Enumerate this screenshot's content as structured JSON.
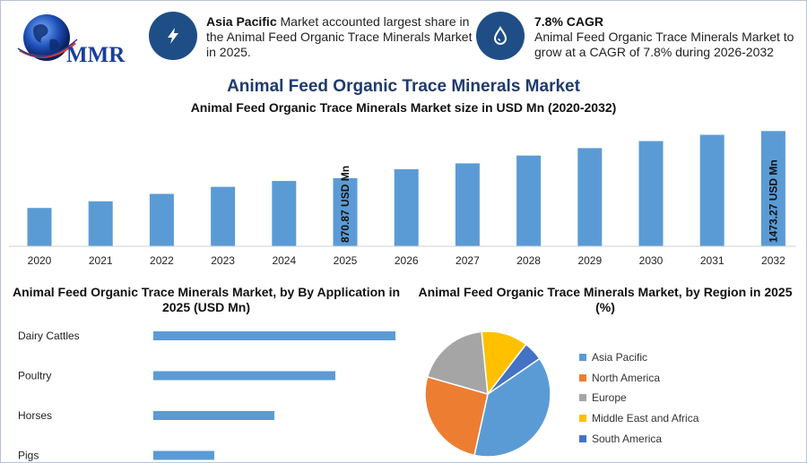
{
  "brand": {
    "logo_text": "MMR"
  },
  "info": [
    {
      "icon": "lightning-icon",
      "bold": "Asia Pacific",
      "text": " Market accounted largest share in the Animal Feed Organic Trace Minerals Market in 2025."
    },
    {
      "icon": "drop-icon",
      "bold": "7.8% CAGR",
      "text": "Animal Feed Organic Trace Minerals Market to grow at a CAGR of 7.8% during 2026-2032"
    }
  ],
  "main_title": "Animal Feed Organic Trace Minerals Market",
  "colors": {
    "bar": "#5b9bd5",
    "title": "#1f3a6e",
    "icon_circle": "#1f4e86"
  },
  "chart_data": [
    {
      "type": "bar",
      "title": "Animal Feed Organic Trace Minerals Market size in USD Mn (2020-2032)",
      "categories": [
        "2020",
        "2021",
        "2022",
        "2023",
        "2024",
        "2025",
        "2026",
        "2027",
        "2028",
        "2029",
        "2030",
        "2031",
        "2032"
      ],
      "values": [
        490,
        575,
        670,
        760,
        835,
        870.87,
        985,
        1060,
        1160,
        1255,
        1345,
        1425,
        1473.27
      ],
      "data_labels": {
        "2025": "870.87 USD Mn",
        "2032": "1473.27 USD Mn"
      },
      "ylim": [
        0,
        1500
      ],
      "grid": false
    },
    {
      "type": "bar",
      "orientation": "horizontal",
      "title": "Animal Feed Organic Trace Minerals Market, by By Application in 2025 (USD Mn)",
      "categories": [
        "Dairy Cattles",
        "Poultry",
        "Horses",
        "Pigs"
      ],
      "values": [
        270,
        203,
        135,
        68
      ],
      "grid": false
    },
    {
      "type": "pie",
      "title": "Animal Feed Organic Trace Minerals Market, by Region in 2025 (%)",
      "categories": [
        "Asia Pacific",
        "North America",
        "Europe",
        "Middle East and Africa",
        "South America"
      ],
      "values": [
        38,
        26,
        19,
        12,
        5
      ],
      "colors": [
        "#5b9bd5",
        "#ed7d31",
        "#a5a5a5",
        "#ffc000",
        "#4472c4"
      ],
      "legend": "right"
    }
  ]
}
